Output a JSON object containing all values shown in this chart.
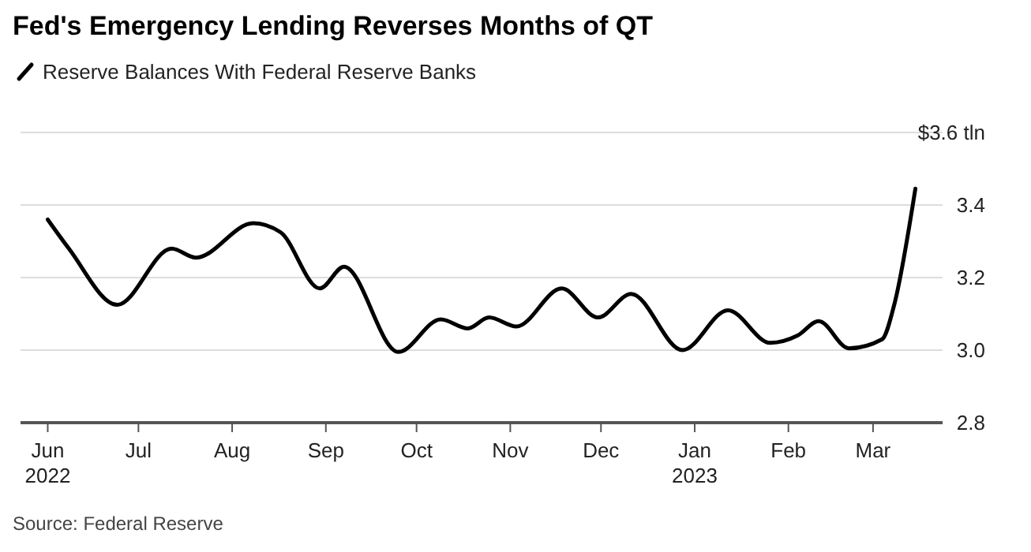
{
  "chart_data": {
    "type": "line",
    "title": "Fed's Emergency Lending Reverses Months of QT",
    "annotations": [
      "Source: Federal Reserve"
    ],
    "legend": "top left",
    "grid": "y",
    "line_style": "solid",
    "xlim": [
      "2022-05-23",
      "2023-03-24"
    ],
    "xticks": [
      {
        "value": "2022-06-01",
        "label": "Jun\n2022"
      },
      {
        "value": "2022-07-01",
        "label": "Jul"
      },
      {
        "value": "2022-08-01",
        "label": "Aug"
      },
      {
        "value": "2022-09-01",
        "label": "Sep"
      },
      {
        "value": "2022-10-01",
        "label": "Oct"
      },
      {
        "value": "2022-11-01",
        "label": "Nov"
      },
      {
        "value": "2022-12-01",
        "label": "Dec"
      },
      {
        "value": "2023-01-01",
        "label": "Jan\n2023"
      },
      {
        "value": "2023-02-01",
        "label": "Feb"
      },
      {
        "value": "2023-03-01",
        "label": "Mar"
      }
    ],
    "ylim": [
      2.8,
      3.6
    ],
    "yticks": [
      2.8,
      {
        "value": 3.0,
        "label": "3.0"
      },
      3.2,
      3.4,
      {
        "value": 3.6,
        "label": "$3.6 tln"
      }
    ],
    "x": [
      "2022-06-01",
      "2022-06-08",
      "2022-06-24",
      "2022-07-12",
      "2022-07-20",
      "2022-08-08",
      "2022-08-17",
      "2022-08-30",
      "2022-09-07",
      "2022-09-25",
      "2022-10-09",
      "2022-10-18",
      "2022-10-25",
      "2022-11-03",
      "2022-11-18",
      "2022-11-30",
      "2022-12-11",
      "2022-12-28",
      "2023-01-12",
      "2023-01-26",
      "2023-02-04",
      "2023-02-11",
      "2023-02-21",
      "2023-03-04",
      "2023-03-08",
      "2023-03-15"
    ],
    "series": [
      {
        "name": "Reserve Balances With Federal Reserve Banks",
        "color": "#000000",
        "values": [
          3.36,
          3.28,
          3.125,
          3.28,
          3.255,
          3.35,
          3.325,
          3.17,
          3.23,
          2.995,
          3.085,
          3.06,
          3.09,
          3.065,
          3.17,
          3.09,
          3.155,
          3.0,
          3.11,
          3.02,
          3.04,
          3.08,
          3.005,
          3.03,
          3.125,
          3.445
        ]
      }
    ]
  }
}
